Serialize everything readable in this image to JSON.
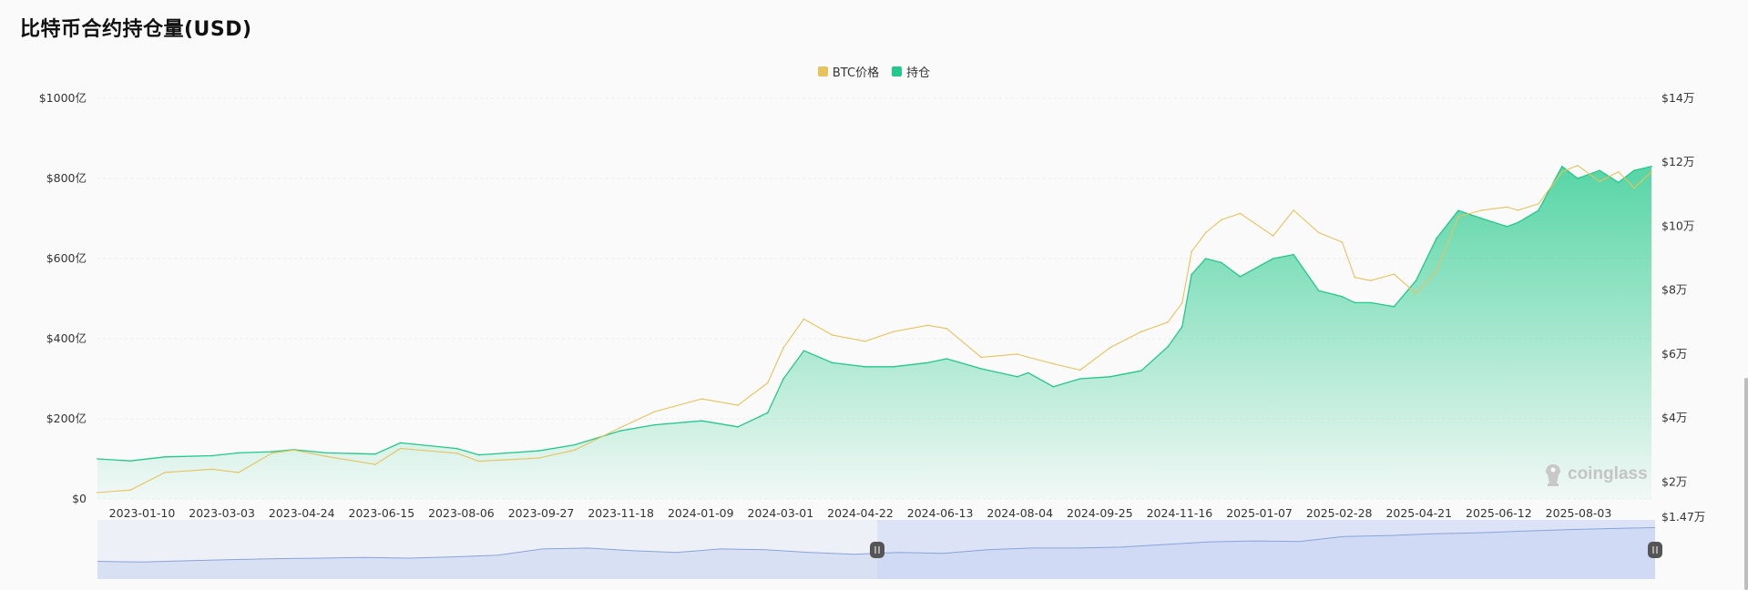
{
  "title": "比特币合约持仓量(USD)",
  "legend": [
    {
      "label": "BTC价格",
      "color": "#e8c25a"
    },
    {
      "label": "持仓",
      "color": "#21c98a"
    }
  ],
  "watermark": "coinglass",
  "chart_data": {
    "type": "area",
    "x_labels": [
      "2023-01-10",
      "2023-03-03",
      "2023-04-24",
      "2023-06-15",
      "2023-08-06",
      "2023-09-27",
      "2023-11-18",
      "2024-01-09",
      "2024-03-01",
      "2024-04-22",
      "2024-06-13",
      "2024-08-04",
      "2024-09-25",
      "2024-11-16",
      "2025-01-07",
      "2025-02-28",
      "2025-04-21",
      "2025-06-12",
      "2025-08-03"
    ],
    "left_axis": {
      "label": "",
      "ticks": [
        "$0",
        "$200亿",
        "$400亿",
        "$600亿",
        "$800亿",
        "$1000亿"
      ],
      "range": [
        0,
        1000
      ],
      "unit": "亿 USD"
    },
    "right_axis": {
      "label": "",
      "ticks": [
        "$1.47万",
        "$2万",
        "$4万",
        "$6万",
        "$8万",
        "$10万",
        "$12万",
        "$14万"
      ],
      "range": [
        1.47,
        14
      ],
      "unit": "万 USD"
    },
    "grid": true,
    "legend_position": "top-center",
    "x": [
      "2022-12-20",
      "2023-01-10",
      "2023-02-01",
      "2023-03-03",
      "2023-03-20",
      "2023-04-10",
      "2023-04-24",
      "2023-05-15",
      "2023-06-15",
      "2023-07-01",
      "2023-08-06",
      "2023-08-20",
      "2023-09-27",
      "2023-10-20",
      "2023-11-18",
      "2023-12-10",
      "2024-01-09",
      "2024-02-01",
      "2024-02-20",
      "2024-03-01",
      "2024-03-14",
      "2024-04-01",
      "2024-04-22",
      "2024-05-10",
      "2024-06-01",
      "2024-06-13",
      "2024-07-05",
      "2024-07-28",
      "2024-08-04",
      "2024-08-20",
      "2024-09-06",
      "2024-09-25",
      "2024-10-15",
      "2024-11-01",
      "2024-11-10",
      "2024-11-16",
      "2024-11-25",
      "2024-12-05",
      "2024-12-17",
      "2025-01-07",
      "2025-01-20",
      "2025-02-05",
      "2025-02-20",
      "2025-02-28",
      "2025-03-10",
      "2025-03-25",
      "2025-04-08",
      "2025-04-21",
      "2025-05-05",
      "2025-05-20",
      "2025-06-05",
      "2025-06-12",
      "2025-06-25",
      "2025-07-10",
      "2025-07-20",
      "2025-08-03",
      "2025-08-15",
      "2025-08-25",
      "2025-09-05"
    ],
    "series": [
      {
        "name": "持仓",
        "axis": "left",
        "color": "#21c98a",
        "values": [
          100,
          95,
          105,
          108,
          115,
          118,
          123,
          115,
          112,
          140,
          126,
          110,
          120,
          135,
          170,
          185,
          195,
          180,
          215,
          300,
          370,
          340,
          330,
          330,
          340,
          350,
          325,
          305,
          315,
          280,
          300,
          305,
          320,
          380,
          430,
          560,
          600,
          590,
          555,
          600,
          610,
          520,
          505,
          490,
          490,
          480,
          545,
          650,
          720,
          700,
          680,
          690,
          720,
          830,
          800,
          820,
          790,
          820,
          830
        ]
      },
      {
        "name": "BTC价格",
        "axis": "right",
        "color": "#e8c25a",
        "values": [
          1.67,
          1.75,
          2.3,
          2.4,
          2.3,
          2.9,
          3.0,
          2.8,
          2.55,
          3.05,
          2.9,
          2.65,
          2.75,
          3.0,
          3.7,
          4.2,
          4.6,
          4.4,
          5.1,
          6.2,
          7.1,
          6.6,
          6.4,
          6.7,
          6.9,
          6.8,
          5.9,
          6.0,
          5.9,
          5.7,
          5.5,
          6.2,
          6.7,
          7.0,
          7.6,
          9.2,
          9.8,
          10.2,
          10.4,
          9.7,
          10.5,
          9.8,
          9.5,
          8.4,
          8.3,
          8.5,
          7.9,
          8.6,
          10.3,
          10.5,
          10.6,
          10.5,
          10.7,
          11.7,
          11.9,
          11.4,
          11.7,
          11.2,
          11.7
        ]
      }
    ],
    "navigator": {
      "values": [
        100,
        96,
        103,
        110,
        115,
        118,
        122,
        118,
        125,
        135,
        170,
        175,
        160,
        150,
        170,
        165,
        150,
        140,
        150,
        145,
        165,
        175,
        175,
        180,
        195,
        210,
        215,
        212,
        240,
        245,
        255,
        260,
        270,
        278,
        285,
        290
      ]
    }
  }
}
